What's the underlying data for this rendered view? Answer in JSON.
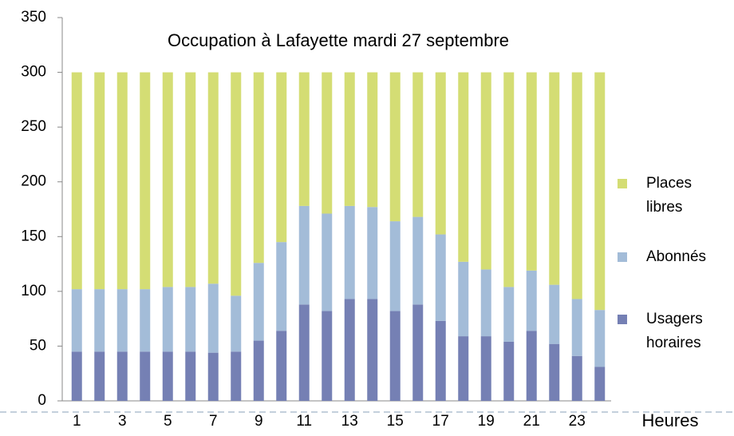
{
  "chart_data": {
    "type": "stacked_bar",
    "title": "Occupation à Lafayette  mardi 27 septembre",
    "x_label": "Heures",
    "categories": [
      "1",
      null,
      "3",
      null,
      "5",
      null,
      "7",
      null,
      "9",
      null,
      "11",
      null,
      "13",
      null,
      "15",
      null,
      "17",
      null,
      "19",
      null,
      "21",
      null,
      "23",
      null
    ],
    "series": [
      {
        "name": "Usagers horaires",
        "color": "#7580b4",
        "values": [
          45,
          45,
          45,
          45,
          45,
          45,
          44,
          45,
          55,
          64,
          88,
          82,
          93,
          93,
          82,
          88,
          73,
          59,
          59,
          54,
          64,
          52,
          41,
          31
        ]
      },
      {
        "name": "Abonnés",
        "color": "#a3bcd8",
        "values": [
          57,
          57,
          57,
          57,
          59,
          59,
          63,
          51,
          71,
          81,
          90,
          89,
          85,
          84,
          82,
          80,
          79,
          68,
          61,
          50,
          55,
          54,
          52,
          52
        ]
      },
      {
        "name": "Places libres",
        "color": "#d4dd74",
        "values": [
          198,
          198,
          198,
          198,
          196,
          196,
          193,
          204,
          174,
          155,
          122,
          129,
          122,
          123,
          136,
          132,
          148,
          173,
          180,
          196,
          181,
          194,
          207,
          217
        ]
      }
    ],
    "ylim": [
      0,
      350
    ],
    "yticks": [
      0,
      50,
      100,
      150,
      200,
      250,
      300,
      350
    ]
  }
}
